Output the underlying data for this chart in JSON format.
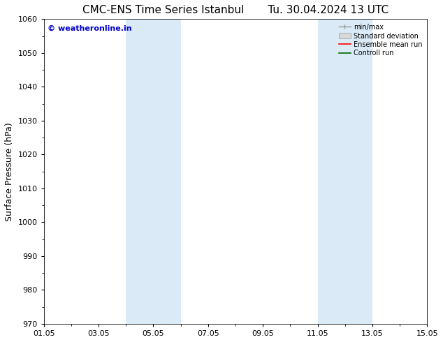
{
  "title_left": "CMC-ENS Time Series Istanbul",
  "title_right": "Tu. 30.04.2024 13 UTC",
  "ylabel": "Surface Pressure (hPa)",
  "watermark": "© weatheronline.in",
  "watermark_color": "#0000cc",
  "xlim_start": 0,
  "xlim_end": 14,
  "ylim": [
    970,
    1060
  ],
  "yticks": [
    970,
    980,
    990,
    1000,
    1010,
    1020,
    1030,
    1040,
    1050,
    1060
  ],
  "xtick_labels": [
    "01.05",
    "03.05",
    "05.05",
    "07.05",
    "09.05",
    "11.05",
    "13.05",
    "15.05"
  ],
  "xtick_positions": [
    0,
    2,
    4,
    6,
    8,
    10,
    12,
    14
  ],
  "shaded_bands": [
    {
      "xmin": 3.0,
      "xmax": 5.0
    },
    {
      "xmin": 10.0,
      "xmax": 12.0
    }
  ],
  "shade_color": "#daeaf6",
  "legend_labels": [
    "min/max",
    "Standard deviation",
    "Ensemble mean run",
    "Controll run"
  ],
  "legend_colors": [
    "#aaaaaa",
    "#cccccc",
    "#ff0000",
    "#008000"
  ],
  "background_color": "#ffffff",
  "plot_bg_color": "#ffffff",
  "title_fontsize": 11,
  "tick_fontsize": 8,
  "ylabel_fontsize": 9
}
